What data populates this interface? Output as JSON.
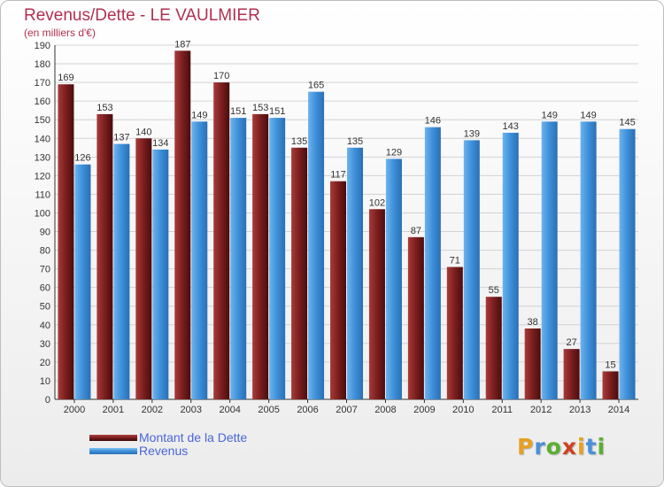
{
  "title": "Revenus/Dette - LE VAULMIER",
  "subtitle": "(en milliers d'€)",
  "logo": {
    "letters": [
      "P",
      "r",
      "o",
      "x",
      "i",
      "t",
      "i"
    ],
    "colors": [
      "#e8a020",
      "#4a90d9",
      "#58b030",
      "#d04020",
      "#e8a020",
      "#4a90d9",
      "#58b030"
    ]
  },
  "colors": {
    "dette": "#7a1e1e",
    "revenus": "#3d8fd8",
    "title": "#b03050",
    "legend_text": "#4a66d8"
  },
  "chart_data": {
    "type": "bar",
    "title": "Revenus/Dette - LE VAULMIER",
    "subtitle": "(en milliers d'€)",
    "categories": [
      "2000",
      "2001",
      "2002",
      "2003",
      "2004",
      "2005",
      "2006",
      "2007",
      "2008",
      "2009",
      "2010",
      "2011",
      "2012",
      "2013",
      "2014"
    ],
    "series": [
      {
        "name": "Montant de la Dette",
        "color": "#7a1e1e",
        "values": [
          169,
          153,
          140,
          187,
          170,
          153,
          135,
          117,
          102,
          87,
          71,
          55,
          38,
          27,
          15
        ]
      },
      {
        "name": "Revenus",
        "color": "#3d8fd8",
        "values": [
          126,
          137,
          134,
          149,
          151,
          151,
          165,
          135,
          129,
          146,
          139,
          143,
          149,
          149,
          145
        ]
      }
    ],
    "ylim": [
      0,
      190
    ],
    "yticks": [
      0,
      10,
      20,
      30,
      40,
      50,
      60,
      70,
      80,
      90,
      100,
      110,
      120,
      130,
      140,
      150,
      160,
      170,
      180,
      190
    ],
    "grid": true,
    "legend_position": "bottom-left",
    "data_labels": true
  }
}
